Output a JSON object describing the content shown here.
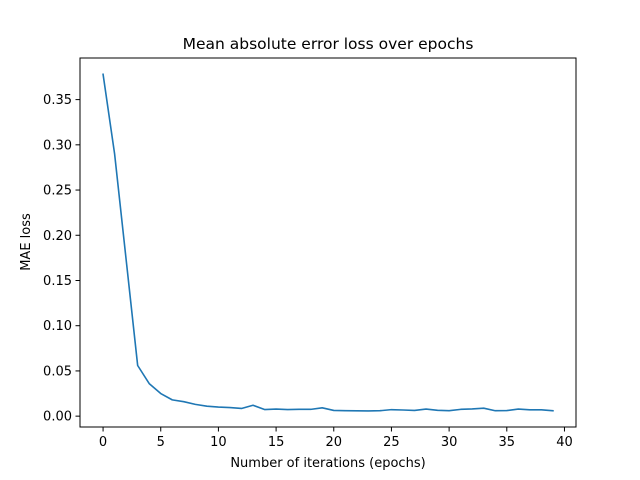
{
  "chart_data": {
    "type": "line",
    "title": "Mean absolute error loss over epochs",
    "xlabel": "Number of iterations (epochs)",
    "ylabel": "MAE loss",
    "xlim": [
      -2,
      41
    ],
    "ylim": [
      -0.012,
      0.396
    ],
    "xticks": [
      0,
      5,
      10,
      15,
      20,
      25,
      30,
      35,
      40
    ],
    "yticks": [
      0.0,
      0.05,
      0.1,
      0.15,
      0.2,
      0.25,
      0.3,
      0.35
    ],
    "ytick_labels": [
      "0.00",
      "0.05",
      "0.10",
      "0.15",
      "0.20",
      "0.25",
      "0.30",
      "0.35"
    ],
    "grid": false,
    "legend": "none",
    "series": [
      {
        "color": "#1f77b4",
        "x": [
          0,
          1,
          2,
          3,
          4,
          5,
          6,
          7,
          8,
          9,
          10,
          11,
          12,
          13,
          14,
          15,
          16,
          17,
          18,
          19,
          20,
          21,
          22,
          23,
          24,
          25,
          26,
          27,
          28,
          29,
          30,
          31,
          32,
          33,
          34,
          35,
          36,
          37,
          38,
          39
        ],
        "y": [
          0.378,
          0.29,
          0.173,
          0.056,
          0.036,
          0.025,
          0.018,
          0.016,
          0.013,
          0.011,
          0.01,
          0.0095,
          0.0085,
          0.012,
          0.0073,
          0.0078,
          0.0073,
          0.0075,
          0.0075,
          0.0092,
          0.0063,
          0.006,
          0.0059,
          0.0058,
          0.006,
          0.0072,
          0.0068,
          0.0063,
          0.0078,
          0.0065,
          0.006,
          0.0075,
          0.008,
          0.0088,
          0.006,
          0.0062,
          0.0078,
          0.007,
          0.007,
          0.006
        ]
      }
    ]
  }
}
